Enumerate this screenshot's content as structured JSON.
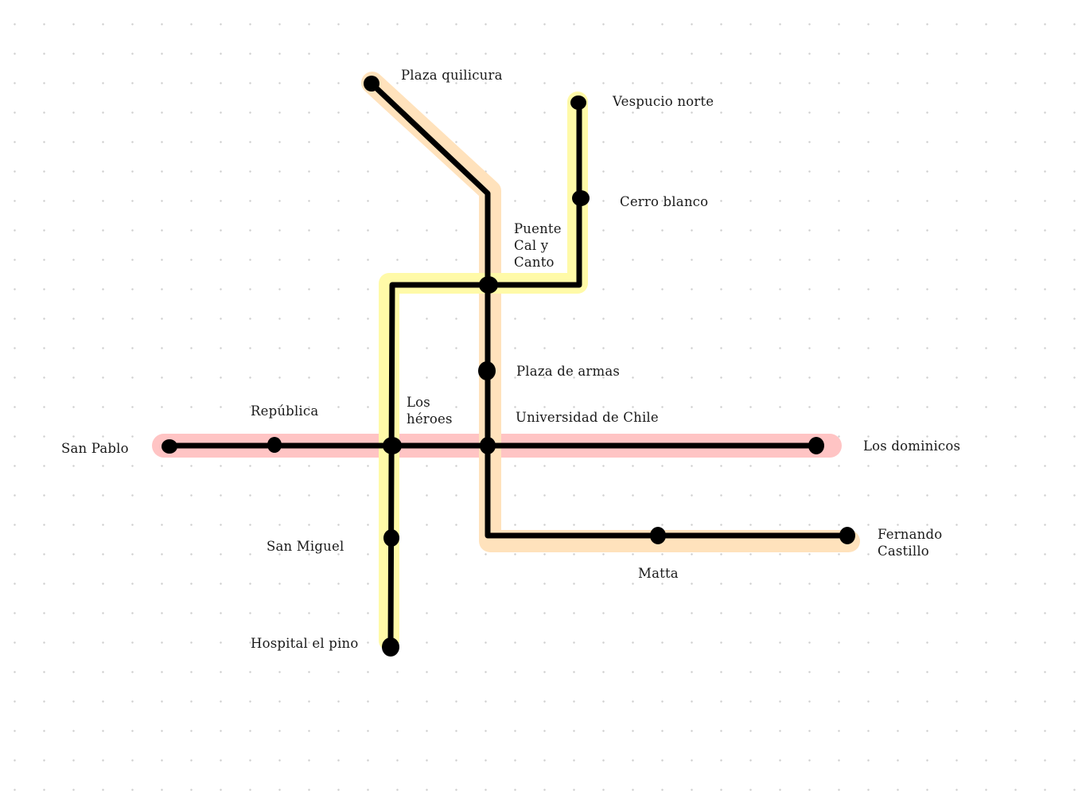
{
  "diagram": {
    "colors": {
      "track": "#000000",
      "line_red": "#ffc4c4",
      "line_orange": "#ffe2bc",
      "line_yellow": "#fffaa8",
      "background": "#ffffff",
      "grid_dot": "#cfcfcf"
    },
    "labels": {
      "plaza_quilicura": "Plaza quilicura",
      "vespucio_norte": "Vespucio norte",
      "cerro_blanco": "Cerro blanco",
      "puente_1": "Puente",
      "puente_2": "Cal y",
      "puente_3": "Canto",
      "plaza_de_armas": "Plaza de armas",
      "republica": "República",
      "los_heroes_1": "Los",
      "los_heroes_2": "héroes",
      "universidad_de_chile": "Universidad de Chile",
      "san_pablo": "San Pablo",
      "los_dominicos": "Los dominicos",
      "san_miguel": "San Miguel",
      "fernando_castillo_1": "Fernando",
      "fernando_castillo_2": "Castillo",
      "matta": "Matta",
      "hospital_el_pino": "Hospital el pino"
    }
  }
}
